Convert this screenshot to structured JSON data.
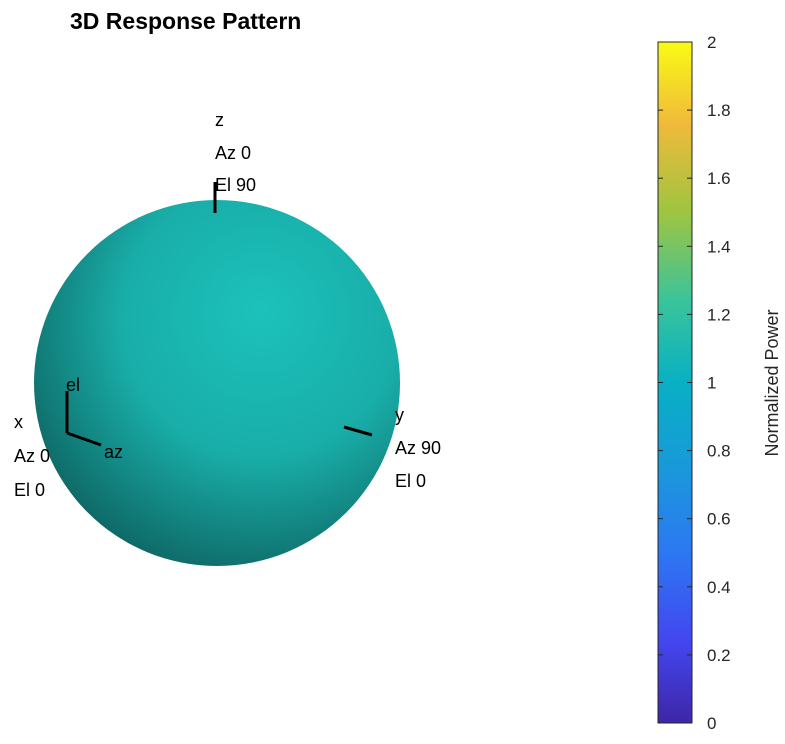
{
  "chart_data": {
    "type": "surface",
    "title": "3D Response Pattern",
    "pattern": "isotropic sphere",
    "normalized_power_value": 1,
    "surface_color": "#1AB3AD",
    "axes": [
      {
        "axis": "z",
        "az_label": "Az 0",
        "el_label": "El 90"
      },
      {
        "axis": "y",
        "az_label": "Az 90",
        "el_label": "El 0"
      },
      {
        "axis": "x",
        "az_label": "Az 0",
        "el_label": "El 0"
      }
    ],
    "local_axes_labels": {
      "elevation": "el",
      "azimuth": "az"
    },
    "colorbar": {
      "label": "Normalized Power",
      "colormap": "parula",
      "lim": [
        0,
        2
      ],
      "ticks": [
        0,
        0.2,
        0.4,
        0.6,
        0.8,
        1,
        1.2,
        1.4,
        1.6,
        1.8,
        2
      ],
      "tick_labels": [
        "0",
        "0.2",
        "0.4",
        "0.6",
        "0.8",
        "1",
        "1.2",
        "1.4",
        "1.6",
        "1.8",
        "2"
      ]
    }
  }
}
